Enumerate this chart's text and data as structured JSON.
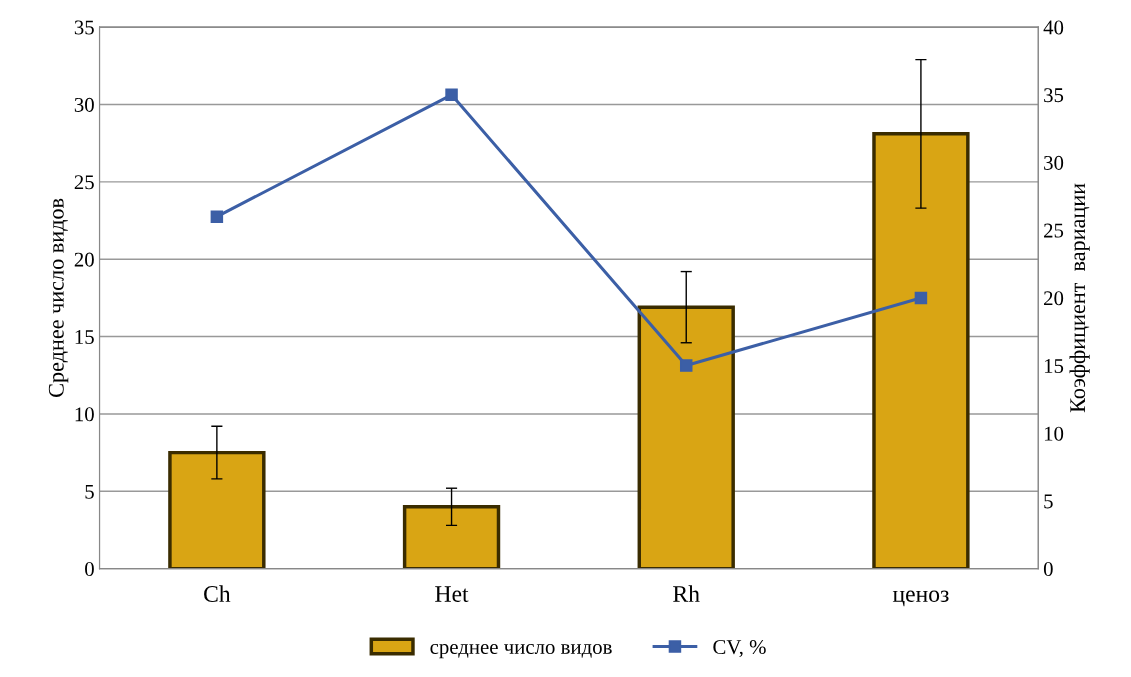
{
  "chart_data": {
    "type": "bar",
    "categories": [
      "Ch",
      "Het",
      "Rh",
      "ценоз"
    ],
    "ylabel": "Среднее число видов",
    "y2label": "Коэффициент  вариации",
    "ylim": [
      0,
      35
    ],
    "yticks": [
      0,
      5,
      10,
      15,
      20,
      25,
      30,
      35
    ],
    "y2lim": [
      0,
      40
    ],
    "y2ticks": [
      0,
      5,
      10,
      15,
      20,
      25,
      30,
      35,
      40
    ],
    "grid": "y",
    "legend": "bottom",
    "series": [
      {
        "name": "среднее число видов",
        "color": "#d9a514",
        "values": [
          7.5,
          4.0,
          16.9,
          28.1
        ],
        "errors": [
          1.7,
          1.2,
          2.3,
          4.8
        ]
      },
      {
        "name": "CV, %",
        "type": "line",
        "axis": "y2",
        "color": "#3c5fa6",
        "marker": "square",
        "values": [
          26.0,
          35.0,
          15.0,
          20.0
        ]
      }
    ]
  }
}
